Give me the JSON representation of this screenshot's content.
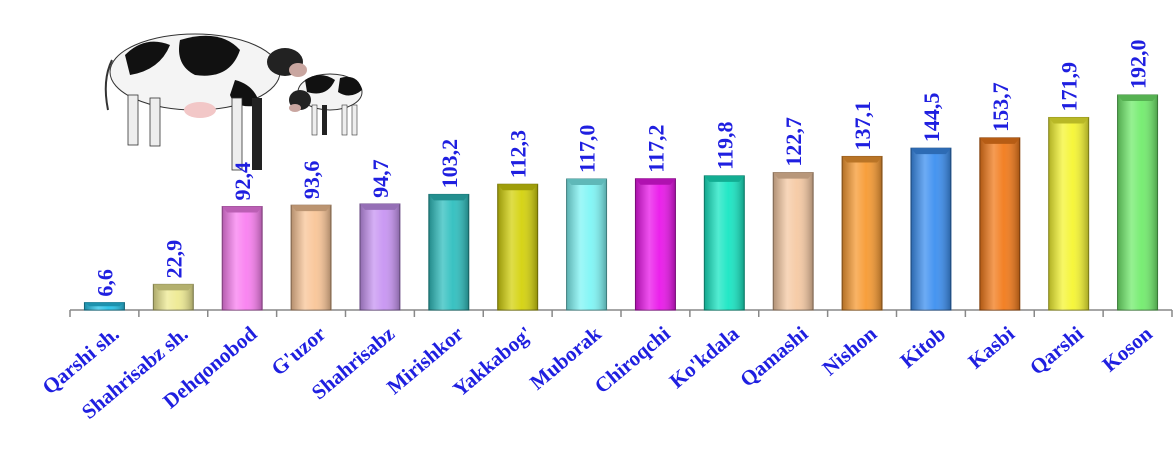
{
  "chart_data": {
    "type": "bar",
    "title": "",
    "xlabel": "",
    "ylabel": "",
    "ylim": [
      0,
      200
    ],
    "grid": false,
    "legend": "none",
    "categories": [
      "Qarshi sh.",
      "Shahrisabz sh.",
      "Dehqonobod",
      "G'uzor",
      "Shahrisabz",
      "Mirishkor",
      "Yakkabog'",
      "Muborak",
      "Chiroqchi",
      "Ko'kdala",
      "Qamashi",
      "Nishon",
      "Kitob",
      "Kasbi",
      "Qarshi",
      "Koson"
    ],
    "values": [
      6.6,
      22.9,
      92.4,
      93.6,
      94.7,
      103.2,
      112.3,
      117.0,
      117.2,
      119.8,
      122.7,
      137.1,
      144.5,
      153.7,
      171.9,
      192.0
    ],
    "value_labels": [
      "6,6",
      "22,9",
      "92,4",
      "93,6",
      "94,7",
      "103,2",
      "112,3",
      "117,0",
      "117,2",
      "119,8",
      "122,7",
      "137,1",
      "144,5",
      "153,7",
      "171,9",
      "192,0"
    ],
    "bar_colors": [
      "#27c3e8",
      "#eeea92",
      "#f97ff0",
      "#f9c597",
      "#c794f2",
      "#2fbfbf",
      "#d4d20c",
      "#7ff5f5",
      "#ea16ea",
      "#18e6c3",
      "#f5c9a3",
      "#f79a32",
      "#3c8ff0",
      "#f27a1a",
      "#f5f532",
      "#72ec6d"
    ],
    "label_color": "#1f1fe0",
    "axis_color": "#888888"
  },
  "illustration": {
    "icon": "cows-icon"
  }
}
